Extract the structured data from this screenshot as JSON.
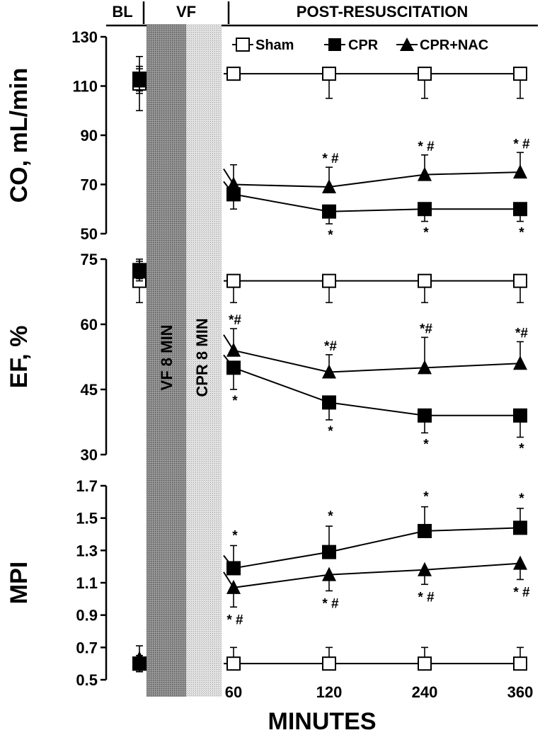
{
  "chart_data": {
    "type": "line",
    "x_label": "MINUTES",
    "x_ticks": [
      "60",
      "120",
      "240",
      "360"
    ],
    "phases": [
      "BL",
      "VF",
      "POST-RESUSCITATION"
    ],
    "interventions": [
      "VF 8 MIN",
      "CPR 8 MIN"
    ],
    "legend": [
      "Sham",
      "CPR",
      "CPR+NAC"
    ],
    "panels": [
      {
        "ylabel": "CO, mL/min",
        "ylim": [
          50,
          130
        ],
        "yticks": [
          "50",
          "70",
          "90",
          "110",
          "130"
        ],
        "series": [
          {
            "name": "Sham",
            "baseline": 111,
            "values": [
              115,
              115,
              115,
              115
            ],
            "err_up": [
              0,
              0,
              0,
              0
            ],
            "err_down": [
              0,
              10,
              10,
              10
            ],
            "baseline_err": 11,
            "annotations": [
              "",
              "",
              "",
              ""
            ]
          },
          {
            "name": "CPR",
            "baseline": 113,
            "values": [
              66,
              59,
              60,
              60
            ],
            "err_up": [
              0,
              0,
              0,
              0
            ],
            "err_down": [
              6,
              5,
              5,
              5
            ],
            "baseline_err": 5,
            "annotations": [
              "",
              "*",
              "*",
              "*"
            ]
          },
          {
            "name": "CPR+NAC",
            "baseline": 112,
            "values": [
              70,
              69,
              74,
              75
            ],
            "err_up": [
              8,
              8,
              8,
              8
            ],
            "err_down": [
              0,
              0,
              0,
              0
            ],
            "baseline_err": 5,
            "annotations": [
              "",
              "* #",
              "* #",
              "* #"
            ]
          }
        ]
      },
      {
        "ylabel": "EF, %",
        "ylim": [
          30,
          75
        ],
        "yticks": [
          "30",
          "45",
          "60",
          "75"
        ],
        "series": [
          {
            "name": "Sham",
            "baseline": 70,
            "values": [
              70,
              70,
              70,
              70
            ],
            "err_up": [
              0,
              0,
              0,
              0
            ],
            "err_down": [
              5,
              5,
              5,
              5
            ],
            "baseline_err": 5,
            "annotations": [
              "",
              "",
              "",
              ""
            ]
          },
          {
            "name": "CPR",
            "baseline": 72.5,
            "values": [
              50,
              42,
              39,
              39
            ],
            "err_up": [
              0,
              0,
              0,
              0
            ],
            "err_down": [
              5,
              4,
              4,
              5
            ],
            "baseline_err": 2,
            "annotations": [
              "*",
              "*",
              "*",
              "*"
            ]
          },
          {
            "name": "CPR+NAC",
            "baseline": 72,
            "values": [
              54,
              49,
              50,
              51
            ],
            "err_up": [
              5,
              4,
              7,
              5
            ],
            "err_down": [
              0,
              0,
              0,
              0
            ],
            "baseline_err": 2,
            "annotations": [
              "*#",
              "*#",
              "*#",
              "*#"
            ]
          }
        ]
      },
      {
        "ylabel": "MPI",
        "ylim": [
          0.5,
          1.7
        ],
        "yticks": [
          "0.5",
          "0.7",
          "0.9",
          "1.1",
          "1.3",
          "1.5",
          "1.7"
        ],
        "series": [
          {
            "name": "Sham",
            "baseline": 0.6,
            "values": [
              0.6,
              0.6,
              0.6,
              0.6
            ],
            "err_up": [
              0.1,
              0.1,
              0.1,
              0.1
            ],
            "err_down": [
              0,
              0,
              0,
              0
            ],
            "baseline_err": 0.05,
            "annotations": [
              "",
              "",
              "",
              ""
            ]
          },
          {
            "name": "CPR",
            "baseline": 0.6,
            "values": [
              1.19,
              1.29,
              1.42,
              1.44
            ],
            "err_up": [
              0.14,
              0.16,
              0.15,
              0.12
            ],
            "err_down": [
              0,
              0,
              0,
              0
            ],
            "baseline_err": 0.05,
            "annotations": [
              "*",
              "*",
              "*",
              "*"
            ]
          },
          {
            "name": "CPR+NAC",
            "baseline": 0.63,
            "values": [
              1.07,
              1.15,
              1.18,
              1.22
            ],
            "err_up": [
              0,
              0,
              0,
              0
            ],
            "err_down": [
              0.12,
              0.1,
              0.09,
              0.1
            ],
            "baseline_err": 0.08,
            "annotations": [
              "* #",
              "* #",
              "* #",
              "* #"
            ]
          }
        ]
      }
    ]
  }
}
